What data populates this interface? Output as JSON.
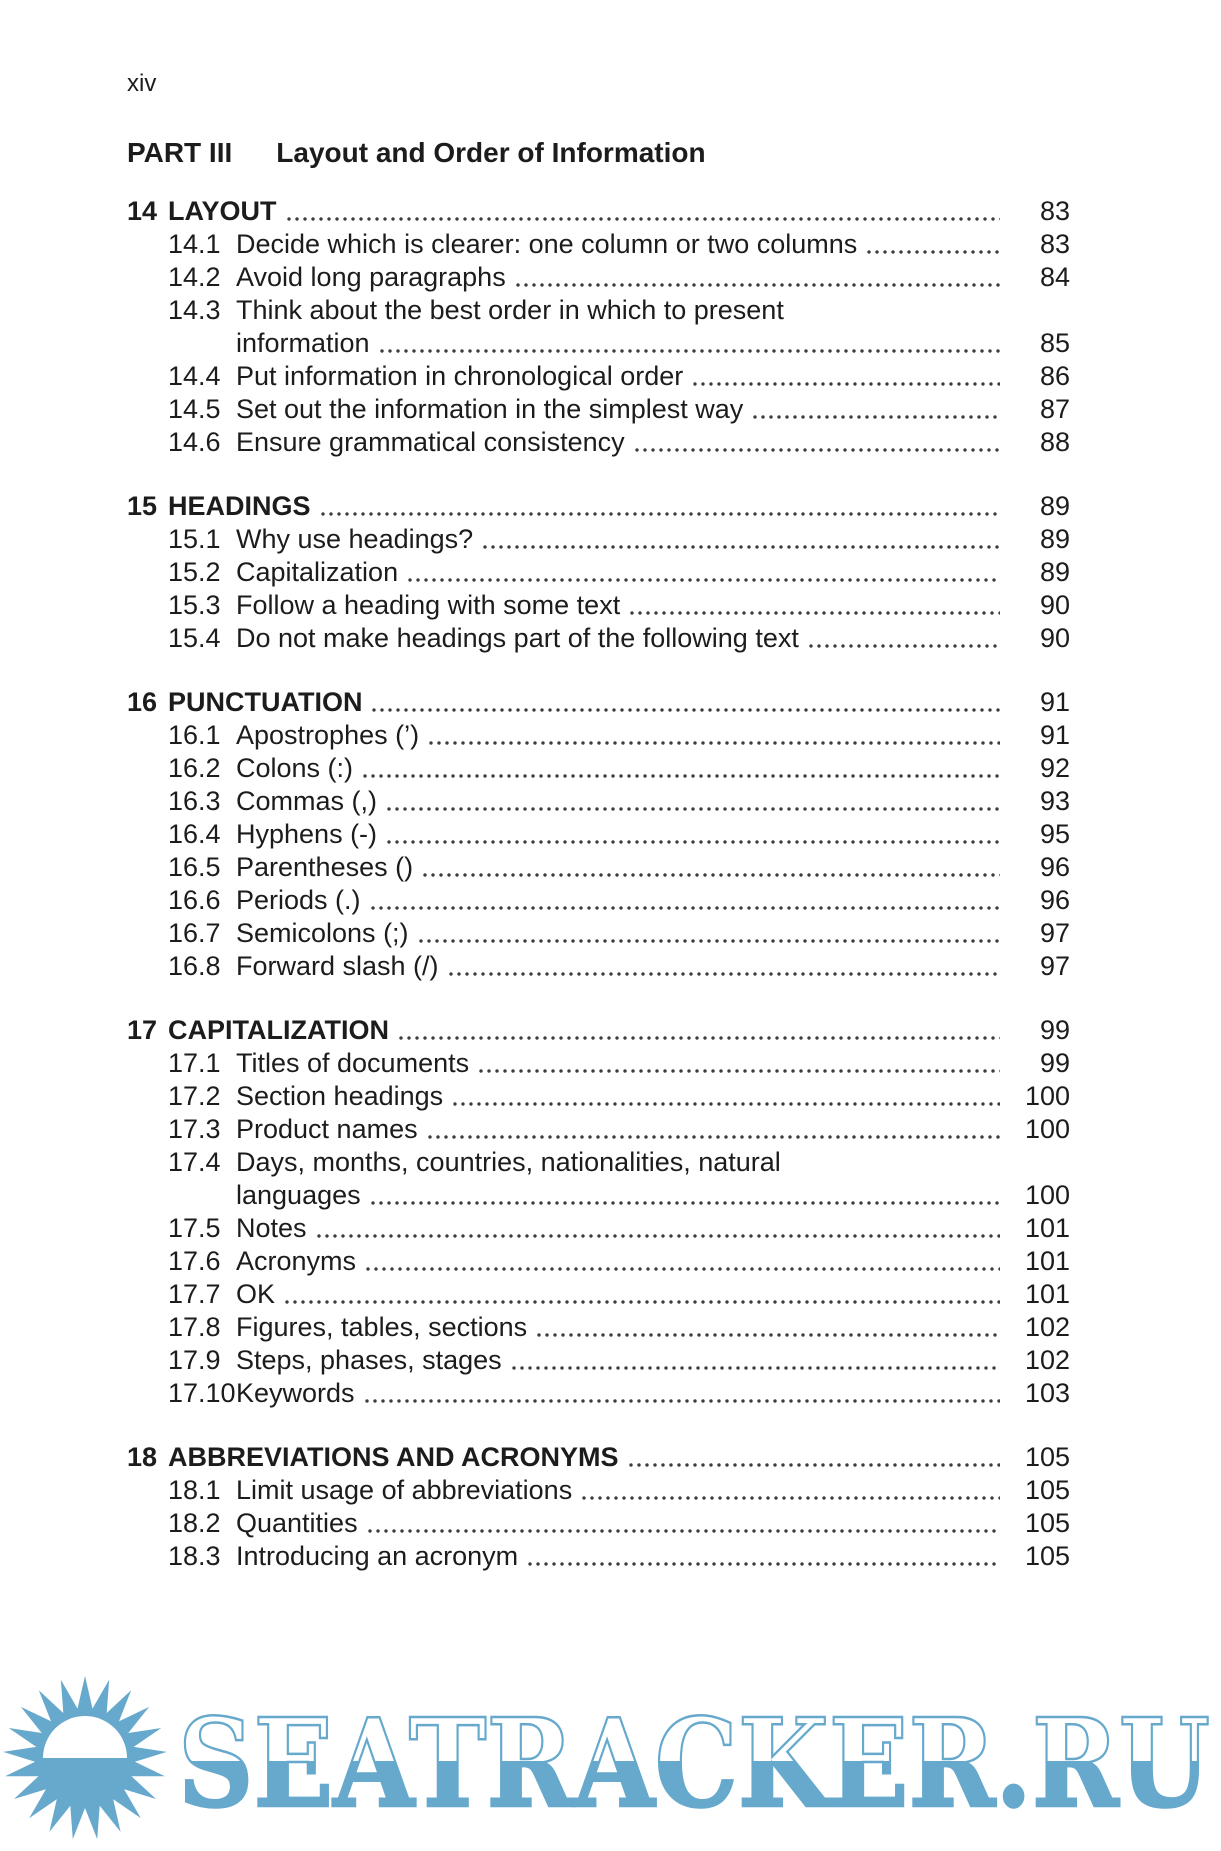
{
  "page_header": "xiv",
  "part_heading": {
    "label": "PART III",
    "title": "Layout and Order of Information"
  },
  "chapters": [
    {
      "num": "14",
      "title": "LAYOUT",
      "page": "83",
      "sections": [
        {
          "num": "14.1",
          "title": "Decide which is clearer: one column or two columns",
          "page": "83"
        },
        {
          "num": "14.2",
          "title": "Avoid long paragraphs",
          "page": "84"
        },
        {
          "num": "14.3",
          "title": "Think about the best order in which to present",
          "title2": "information",
          "page": "85"
        },
        {
          "num": "14.4",
          "title": "Put information in chronological order",
          "page": "86"
        },
        {
          "num": "14.5",
          "title": "Set out the information in the simplest way",
          "page": "87"
        },
        {
          "num": "14.6",
          "title": "Ensure grammatical consistency",
          "page": "88"
        }
      ]
    },
    {
      "num": "15",
      "title": "HEADINGS",
      "page": "89",
      "sections": [
        {
          "num": "15.1",
          "title": "Why use headings?",
          "page": "89"
        },
        {
          "num": "15.2",
          "title": "Capitalization",
          "page": "89"
        },
        {
          "num": "15.3",
          "title": "Follow a heading with some text",
          "page": "90"
        },
        {
          "num": "15.4",
          "title": "Do not make headings part of the following text",
          "page": "90"
        }
      ]
    },
    {
      "num": "16",
      "title": "PUNCTUATION",
      "page": "91",
      "sections": [
        {
          "num": "16.1",
          "title": "Apostrophes (’)",
          "page": "91"
        },
        {
          "num": "16.2",
          "title": "Colons (:)",
          "page": "92"
        },
        {
          "num": "16.3",
          "title": "Commas (,)",
          "page": "93"
        },
        {
          "num": "16.4",
          "title": "Hyphens (-)",
          "page": "95"
        },
        {
          "num": "16.5",
          "title": "Parentheses ()",
          "page": "96"
        },
        {
          "num": "16.6",
          "title": "Periods (.)",
          "page": "96"
        },
        {
          "num": "16.7",
          "title": "Semicolons (;)",
          "page": "97"
        },
        {
          "num": "16.8",
          "title": "Forward slash (/)",
          "page": "97"
        }
      ]
    },
    {
      "num": "17",
      "title": "CAPITALIZATION",
      "page": "99",
      "sections": [
        {
          "num": "17.1",
          "title": "Titles of documents",
          "page": "99"
        },
        {
          "num": "17.2",
          "title": "Section headings",
          "page": "100"
        },
        {
          "num": "17.3",
          "title": "Product names",
          "page": "100"
        },
        {
          "num": "17.4",
          "title": "Days, months, countries, nationalities, natural",
          "title2": "languages",
          "page": "100"
        },
        {
          "num": "17.5",
          "title": "Notes",
          "page": "101"
        },
        {
          "num": "17.6",
          "title": "Acronyms",
          "page": "101"
        },
        {
          "num": "17.7",
          "title": "OK",
          "page": "101"
        },
        {
          "num": "17.8",
          "title": "Figures, tables, sections",
          "page": "102"
        },
        {
          "num": "17.9",
          "title": "Steps, phases, stages",
          "page": "102"
        },
        {
          "num": "17.10",
          "title": "Keywords",
          "page": "103"
        }
      ]
    },
    {
      "num": "18",
      "title": "ABBREVIATIONS AND ACRONYMS",
      "page": "105",
      "sections": [
        {
          "num": "18.1",
          "title": "Limit usage of abbreviations",
          "page": "105"
        },
        {
          "num": "18.2",
          "title": "Quantities",
          "page": "105"
        },
        {
          "num": "18.3",
          "title": "Introducing an acronym",
          "page": "105"
        }
      ]
    }
  ],
  "watermark": {
    "text": "SEATRACKER.RU",
    "color": "#66a9cd",
    "icon": "sun-icon"
  }
}
